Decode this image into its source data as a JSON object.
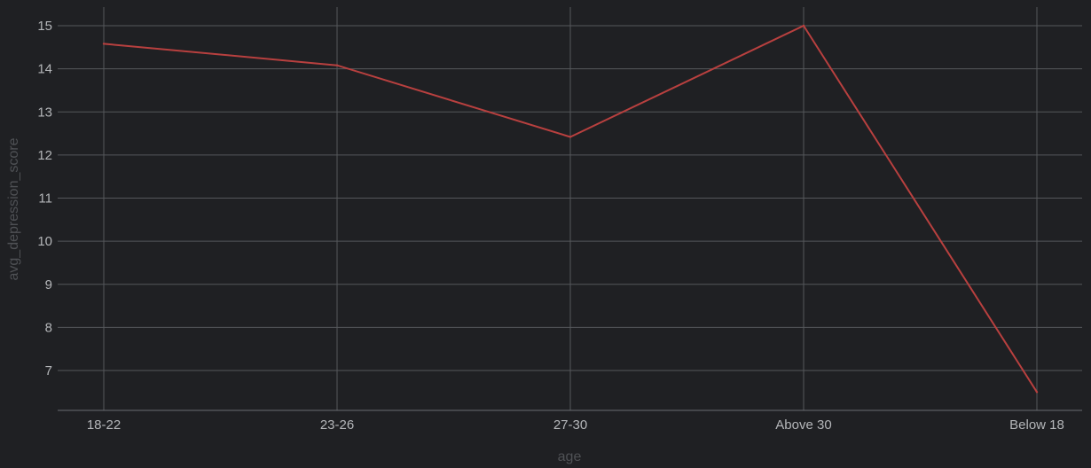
{
  "chart_data": {
    "type": "line",
    "categories": [
      "18-22",
      "23-26",
      "27-30",
      "Above 30",
      "Below 18"
    ],
    "series": [
      {
        "values": [
          14.58,
          14.08,
          12.42,
          15.0,
          6.5
        ],
        "color": "#b8403f"
      }
    ],
    "xlabel": "age",
    "ylabel": "avg_depression_score",
    "yticks": [
      7,
      8,
      9,
      10,
      11,
      12,
      13,
      14,
      15
    ],
    "ylim": [
      6.1,
      15.4
    ],
    "grid": true,
    "colors": {
      "background": "#1f2023",
      "grid": "#55575b",
      "tick_label": "#b4b6b9",
      "axis_title": "#4f5155"
    }
  }
}
